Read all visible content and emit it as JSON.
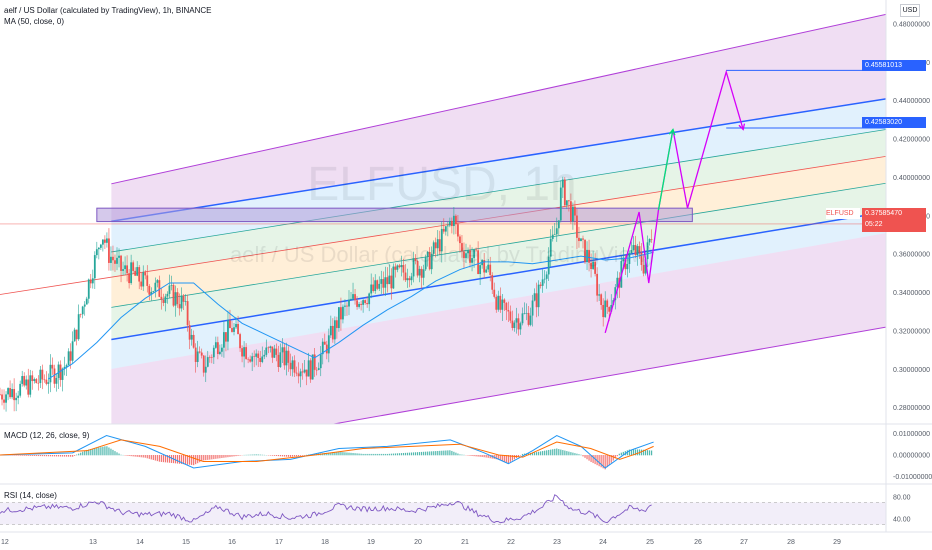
{
  "header": {
    "title": "aelf / US Dollar (calculated by TradingView), 1h, BINANCE",
    "ma_label": "MA (50, close, 0)"
  },
  "watermark": {
    "symbol": "ELFUSD, 1h",
    "description": "aelf / US Dollar (calculated by TradingView)"
  },
  "currency_button": "USD",
  "price_tags": {
    "target_high": "0.45581013",
    "target_mid": "0.42583020",
    "symbol": "ELFUSD",
    "last_price": "0.37585470",
    "countdown": "05:22"
  },
  "indicators": {
    "macd_label": "MACD (12, 26, close, 9)",
    "rsi_label": "RSI (14, close)"
  },
  "colors": {
    "up": "#26a69a",
    "down": "#ef5350",
    "channel_blue": "#2962ff",
    "channel_purple": "#b03fd8",
    "projection_magenta": "#d500f9",
    "projection_green": "#00e676",
    "ma_line": "#2196f3",
    "rsi_line": "#7e57c2"
  },
  "chart_data": {
    "type": "candlestick",
    "symbol": "ELFUSD",
    "timeframe": "1h",
    "price_axis": {
      "ticks": [
        "0.48000000",
        "0.46000000",
        "0.44000000",
        "0.42000000",
        "0.40000000",
        "0.38000000",
        "0.36000000",
        "0.34000000",
        "0.32000000",
        "0.30000000",
        "0.28000000"
      ],
      "range": [
        0.2715,
        0.4925
      ]
    },
    "macd_axis": {
      "ticks": [
        "0.01000000",
        "0.00000000",
        "-0.01000000"
      ]
    },
    "rsi_axis": {
      "ticks": [
        "80.00",
        "40.00"
      ]
    },
    "x_axis": {
      "ticks": [
        "12",
        "13",
        "14",
        "15",
        "16",
        "17",
        "18",
        "19",
        "20",
        "21",
        "22",
        "23",
        "24",
        "25",
        "26",
        "27",
        "28",
        "29"
      ]
    },
    "close_path": [
      [
        11.0,
        0.287
      ],
      [
        11.5,
        0.291
      ],
      [
        12.0,
        0.296
      ],
      [
        12.4,
        0.303
      ],
      [
        12.7,
        0.332
      ],
      [
        12.9,
        0.352
      ],
      [
        13.0,
        0.36
      ],
      [
        13.1,
        0.372
      ],
      [
        13.25,
        0.36
      ],
      [
        13.5,
        0.352
      ],
      [
        13.7,
        0.35
      ],
      [
        14.0,
        0.345
      ],
      [
        14.3,
        0.341
      ],
      [
        14.6,
        0.338
      ],
      [
        14.8,
        0.334
      ],
      [
        15.0,
        0.31
      ],
      [
        15.2,
        0.301
      ],
      [
        15.5,
        0.314
      ],
      [
        15.8,
        0.322
      ],
      [
        16.0,
        0.312
      ],
      [
        16.3,
        0.306
      ],
      [
        16.6,
        0.309
      ],
      [
        16.9,
        0.305
      ],
      [
        17.2,
        0.302
      ],
      [
        17.4,
        0.3
      ],
      [
        17.6,
        0.306
      ],
      [
        17.8,
        0.315
      ],
      [
        18.0,
        0.327
      ],
      [
        18.3,
        0.336
      ],
      [
        18.6,
        0.339
      ],
      [
        18.9,
        0.344
      ],
      [
        19.2,
        0.349
      ],
      [
        19.5,
        0.353
      ],
      [
        19.8,
        0.354
      ],
      [
        20.0,
        0.363
      ],
      [
        20.2,
        0.371
      ],
      [
        20.35,
        0.38
      ],
      [
        20.5,
        0.365
      ],
      [
        20.8,
        0.357
      ],
      [
        21.1,
        0.351
      ],
      [
        21.3,
        0.332
      ],
      [
        21.6,
        0.326
      ],
      [
        21.9,
        0.328
      ],
      [
        22.1,
        0.338
      ],
      [
        22.3,
        0.356
      ],
      [
        22.5,
        0.374
      ],
      [
        22.6,
        0.395
      ],
      [
        22.8,
        0.382
      ],
      [
        23.0,
        0.364
      ],
      [
        23.2,
        0.356
      ],
      [
        23.4,
        0.336
      ],
      [
        23.5,
        0.331
      ],
      [
        23.7,
        0.34
      ],
      [
        23.9,
        0.356
      ],
      [
        24.1,
        0.362
      ],
      [
        24.3,
        0.354
      ],
      [
        24.5,
        0.376
      ]
    ],
    "ma_50": [
      [
        12.0,
        0.295
      ],
      [
        12.5,
        0.303
      ],
      [
        13.0,
        0.314
      ],
      [
        13.5,
        0.327
      ],
      [
        14.0,
        0.337
      ],
      [
        14.5,
        0.345
      ],
      [
        15.0,
        0.345
      ],
      [
        15.5,
        0.334
      ],
      [
        16.0,
        0.324
      ],
      [
        16.5,
        0.318
      ],
      [
        17.0,
        0.312
      ],
      [
        17.5,
        0.306
      ],
      [
        18.0,
        0.314
      ],
      [
        18.5,
        0.323
      ],
      [
        19.0,
        0.331
      ],
      [
        19.5,
        0.338
      ],
      [
        20.0,
        0.346
      ],
      [
        20.5,
        0.352
      ],
      [
        21.0,
        0.356
      ],
      [
        21.5,
        0.356
      ],
      [
        22.0,
        0.355
      ],
      [
        22.5,
        0.357
      ],
      [
        23.0,
        0.359
      ],
      [
        23.5,
        0.357
      ],
      [
        24.0,
        0.358
      ],
      [
        24.5,
        0.361
      ]
    ],
    "regression_channel": {
      "x_range": [
        11.0,
        29.3
      ],
      "outer_upper": [
        0.384,
        0.485
      ],
      "upper": [
        0.368,
        0.441
      ],
      "mid_upper": [
        0.352,
        0.425
      ],
      "middle": [
        0.339,
        0.411
      ],
      "mid_lower": [
        0.323,
        0.397
      ],
      "lower": [
        0.306,
        0.382
      ],
      "outer_lower": [
        0.29,
        0.371
      ],
      "outer_lower_limit": [
        0.241,
        0.322
      ]
    },
    "supply_zone": {
      "x": [
        13.0,
        25.3
      ],
      "price": [
        0.377,
        0.384
      ]
    },
    "projection_pink": [
      [
        23.5,
        0.319
      ],
      [
        24.2,
        0.382
      ],
      [
        24.4,
        0.345
      ],
      [
        24.6,
        0.383
      ],
      [
        24.9,
        0.425
      ],
      [
        25.2,
        0.384
      ],
      [
        26.0,
        0.455
      ],
      [
        26.35,
        0.425
      ]
    ],
    "projection_green": [
      [
        24.6,
        0.383
      ],
      [
        24.9,
        0.425
      ]
    ],
    "targets": [
      0.4558,
      0.4258
    ],
    "macd": {
      "range": [
        -0.0125,
        0.0125
      ],
      "macd_line": [
        [
          11.0,
          0.0
        ],
        [
          12.5,
          0.001
        ],
        [
          13.2,
          0.009
        ],
        [
          14.0,
          0.004
        ],
        [
          15.0,
          -0.006
        ],
        [
          16.0,
          -0.003
        ],
        [
          17.0,
          -0.002
        ],
        [
          18.0,
          0.003
        ],
        [
          19.0,
          0.004
        ],
        [
          20.3,
          0.007
        ],
        [
          21.0,
          0.001
        ],
        [
          21.5,
          -0.004
        ],
        [
          22.0,
          0.002
        ],
        [
          22.5,
          0.009
        ],
        [
          23.0,
          0.004
        ],
        [
          23.5,
          -0.006
        ],
        [
          24.0,
          0.002
        ],
        [
          24.5,
          0.006
        ]
      ],
      "signal_line": [
        [
          11.0,
          0.0
        ],
        [
          12.8,
          0.002
        ],
        [
          13.5,
          0.007
        ],
        [
          14.3,
          0.004
        ],
        [
          15.2,
          -0.003
        ],
        [
          16.3,
          -0.003
        ],
        [
          17.5,
          0.0
        ],
        [
          18.5,
          0.003
        ],
        [
          19.5,
          0.004
        ],
        [
          20.5,
          0.005
        ],
        [
          21.3,
          0.0
        ],
        [
          21.8,
          -0.001
        ],
        [
          22.5,
          0.006
        ],
        [
          23.2,
          0.003
        ],
        [
          23.8,
          -0.002
        ],
        [
          24.2,
          0.001
        ],
        [
          24.5,
          0.004
        ]
      ]
    },
    "rsi": {
      "range": [
        20,
        100
      ],
      "values": [
        [
          11.0,
          55
        ],
        [
          11.5,
          58
        ],
        [
          12.0,
          62
        ],
        [
          12.5,
          60
        ],
        [
          13.0,
          72
        ],
        [
          13.5,
          52
        ],
        [
          14.0,
          48
        ],
        [
          14.5,
          50
        ],
        [
          15.0,
          36
        ],
        [
          15.5,
          62
        ],
        [
          16.0,
          44
        ],
        [
          16.5,
          50
        ],
        [
          17.0,
          42
        ],
        [
          17.5,
          48
        ],
        [
          18.0,
          64
        ],
        [
          18.5,
          58
        ],
        [
          19.0,
          60
        ],
        [
          19.5,
          55
        ],
        [
          20.0,
          62
        ],
        [
          20.4,
          72
        ],
        [
          20.8,
          52
        ],
        [
          21.3,
          35
        ],
        [
          21.8,
          44
        ],
        [
          22.2,
          62
        ],
        [
          22.5,
          82
        ],
        [
          22.8,
          58
        ],
        [
          23.2,
          50
        ],
        [
          23.5,
          35
        ],
        [
          24.0,
          60
        ],
        [
          24.3,
          55
        ],
        [
          24.5,
          70
        ]
      ]
    }
  }
}
